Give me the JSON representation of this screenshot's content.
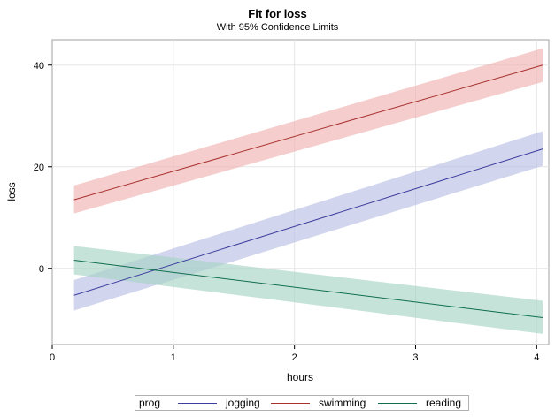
{
  "chart_data": {
    "type": "line",
    "title": "Fit for loss",
    "subtitle": "With 95% Confidence Limits",
    "xlabel": "hours",
    "ylabel": "loss",
    "xlim": [
      0,
      4.1
    ],
    "ylim": [
      -15,
      45
    ],
    "xticks": [
      0,
      1,
      2,
      3,
      4
    ],
    "yticks": [
      0,
      20,
      40
    ],
    "grid": true,
    "legend": {
      "title": "prog",
      "placement": "bottom",
      "items": [
        "jogging",
        "swimming",
        "reading"
      ]
    },
    "series": [
      {
        "name": "jogging",
        "color": "#3d3d9e",
        "band_color": "#b8bfe3",
        "x": [
          0.18,
          4.05
        ],
        "y": [
          -5.3,
          23.5
        ],
        "lower": [
          -8.3,
          20.2
        ],
        "upper": [
          -2.3,
          27.0
        ]
      },
      {
        "name": "swimming",
        "color": "#a8312e",
        "band_color": "#efb2b2",
        "x": [
          0.18,
          4.05
        ],
        "y": [
          13.5,
          40.0
        ],
        "lower": [
          10.8,
          36.7
        ],
        "upper": [
          16.3,
          43.3
        ]
      },
      {
        "name": "reading",
        "color": "#0f6e4e",
        "band_color": "#a7d4c6",
        "x": [
          0.18,
          4.05
        ],
        "y": [
          1.6,
          -9.7
        ],
        "lower": [
          -1.2,
          -12.9
        ],
        "upper": [
          4.4,
          -6.4
        ]
      }
    ]
  }
}
